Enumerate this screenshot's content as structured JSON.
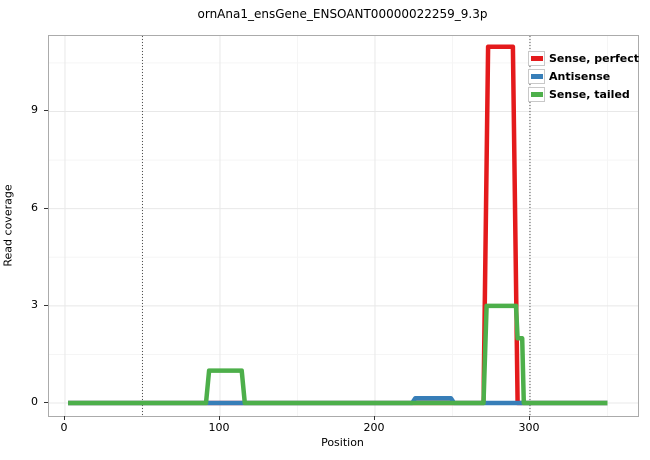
{
  "title": "ornAna1_ensGene_ENSOANT00000022259_9.3p",
  "axes": {
    "xlabel": "Position",
    "ylabel": "Read coverage",
    "x_ticks": [
      "0",
      "100",
      "200",
      "300"
    ],
    "x_tick_values": [
      0,
      100,
      200,
      300
    ],
    "y_ticks": [
      "0",
      "3",
      "6",
      "9"
    ],
    "y_tick_values": [
      0,
      3,
      6,
      9
    ]
  },
  "legend": {
    "items": [
      {
        "label": "Sense, perfect",
        "color": "#E41A1C"
      },
      {
        "label": "Antisense",
        "color": "#377EB8"
      },
      {
        "label": "Sense, tailed",
        "color": "#4DAF4A"
      }
    ]
  },
  "chart_data": {
    "type": "line",
    "title": "ornAna1_ensGene_ENSOANT00000022259_9.3p",
    "xlabel": "Position",
    "ylabel": "Read coverage",
    "xlim": [
      -10.3,
      369.7
    ],
    "ylim": [
      -0.4,
      11.33
    ],
    "x_major_gridlines": [
      0,
      100,
      200,
      300
    ],
    "x_minor_gridlines": [
      50,
      150,
      250,
      350
    ],
    "y_major_gridlines": [
      0,
      3,
      6,
      9
    ],
    "y_minor_gridlines": [
      1.5,
      4.5,
      7.5,
      10.5
    ],
    "grid": {
      "major_color": "#e8e8e8",
      "minor_color": "#f5f5f5"
    },
    "vlines": {
      "positions": [
        50,
        300
      ],
      "style": "dotted",
      "color": "#4d4d4d"
    },
    "series": [
      {
        "name": "Sense, perfect",
        "color": "#E41A1C",
        "segments": [
          {
            "from": 2,
            "to": 270,
            "value": 0
          },
          {
            "from": 273,
            "to": 289,
            "value": 11
          },
          {
            "from": 292,
            "to": 350,
            "value": 0
          }
        ]
      },
      {
        "name": "Antisense",
        "color": "#377EB8",
        "segments": [
          {
            "from": 2,
            "to": 224,
            "value": 0
          },
          {
            "from": 226,
            "to": 249,
            "value": 0.15
          },
          {
            "from": 251,
            "to": 350,
            "value": 0
          }
        ]
      },
      {
        "name": "Sense, tailed",
        "color": "#4DAF4A",
        "segments": [
          {
            "from": 2,
            "to": 91,
            "value": 0
          },
          {
            "from": 93,
            "to": 114,
            "value": 1
          },
          {
            "from": 116,
            "to": 270,
            "value": 0
          },
          {
            "from": 272,
            "to": 291,
            "value": 3
          },
          {
            "from": 292,
            "to": 295,
            "value": 2
          },
          {
            "from": 296,
            "to": 350,
            "value": 0
          }
        ]
      }
    ]
  }
}
